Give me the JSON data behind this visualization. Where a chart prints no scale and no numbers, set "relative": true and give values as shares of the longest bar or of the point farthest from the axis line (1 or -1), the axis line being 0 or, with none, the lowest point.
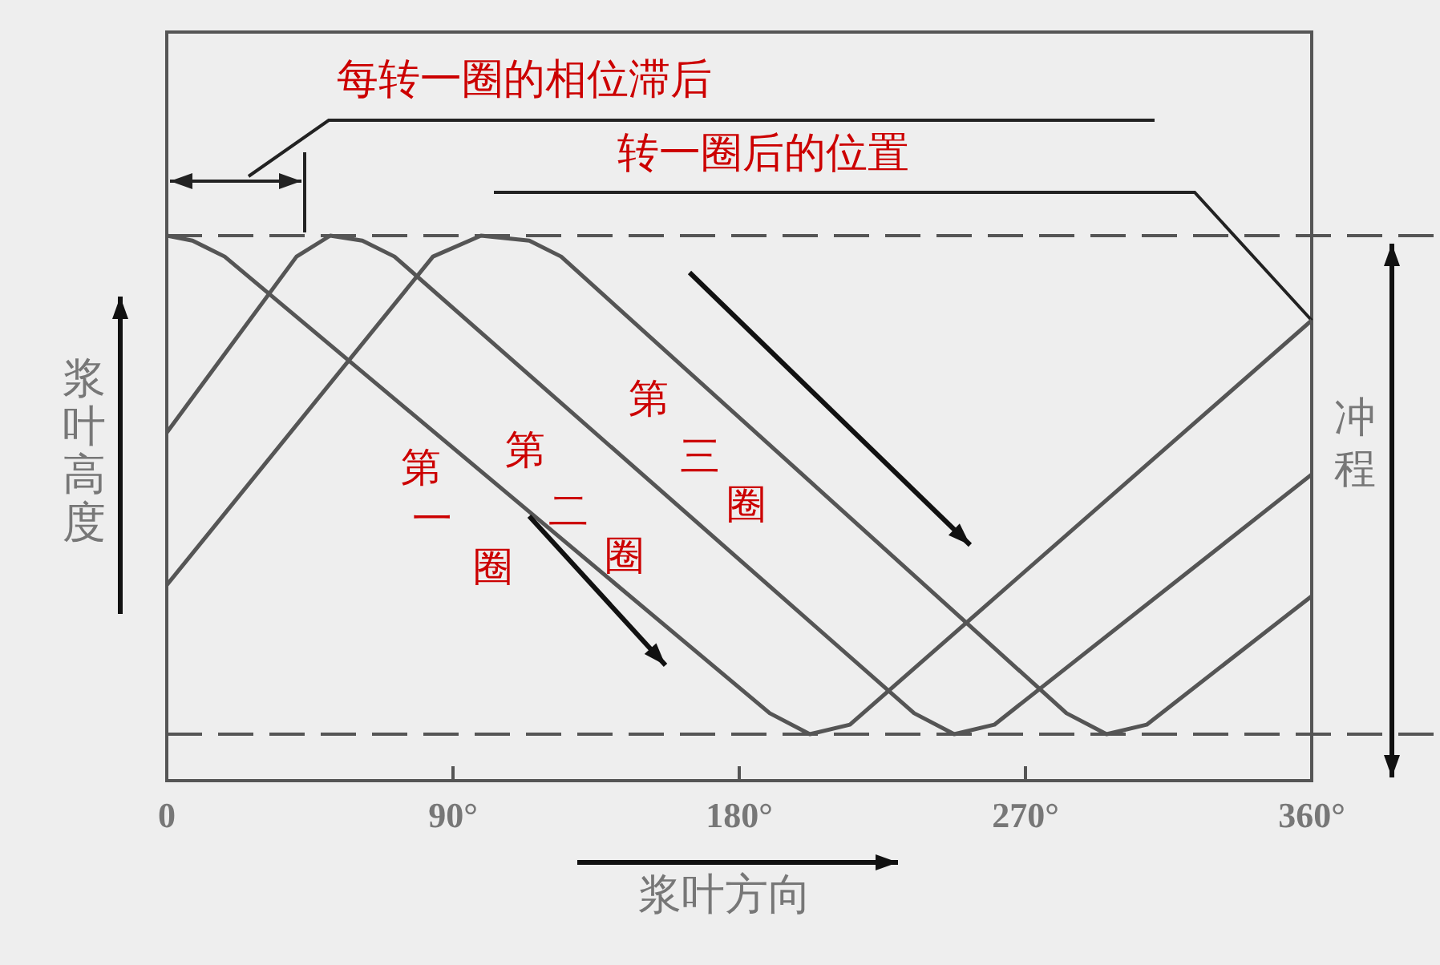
{
  "chart_data": {
    "type": "line",
    "relative": true,
    "xlabel": "浆叶方向",
    "ylabel": "浆叶高度",
    "xlim": [
      0,
      360
    ],
    "xticks": [
      0,
      {
        "value": 90,
        "label": "90°"
      },
      {
        "value": 180,
        "label": "180°"
      },
      {
        "value": 270,
        "label": "270°"
      },
      {
        "value": 360,
        "label": "360°"
      }
    ],
    "grid": false,
    "legend": false,
    "marker": "none",
    "line_style": "solid",
    "series": [
      {
        "name": "第一圈",
        "color": "#555555",
        "x": [
          0,
          8.1,
          18.2,
          189.6,
          202.2,
          214.8,
          360
        ],
        "values": [
          1,
          0.99,
          0.958,
          0.042,
          0,
          0.019,
          0.83
        ]
      },
      {
        "name": "第二圈",
        "color": "#555555",
        "x": [
          0,
          40.8,
          51.4,
          61.5,
          71.6,
          235,
          247.6,
          260.2,
          360
        ],
        "values": [
          0.605,
          0.958,
          1,
          0.99,
          0.958,
          0.042,
          0,
          0.019,
          0.521
        ]
      },
      {
        "name": "第三圈",
        "color": "#555555",
        "x": [
          0,
          83.7,
          98.8,
          114,
          124,
          282.9,
          295.5,
          308.1,
          360
        ],
        "values": [
          0.299,
          0.958,
          1,
          0.99,
          0.958,
          0.042,
          0,
          0.019,
          0.277
        ]
      }
    ],
    "ref_lines": [
      {
        "axis": "y",
        "value": 1,
        "line_style": "dashed",
        "color": "#555555"
      },
      {
        "axis": "y",
        "value": 0,
        "line_style": "dashed",
        "color": "#555555"
      }
    ],
    "annotations": [
      "每转一圈的相位滞后",
      {
        "text": "转一圈后的位置",
        "x": 360,
        "y": 0.83
      },
      "冲程"
    ]
  }
}
